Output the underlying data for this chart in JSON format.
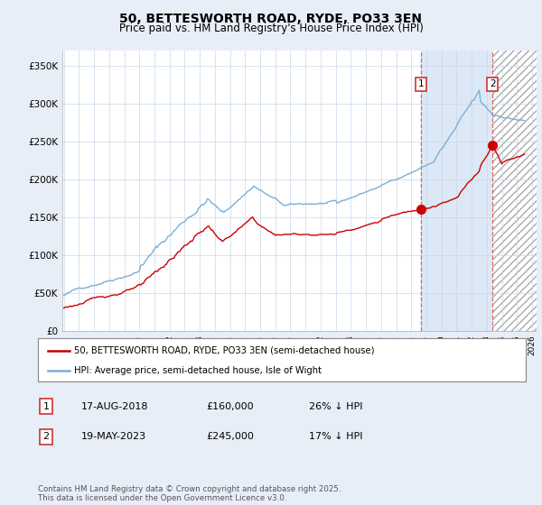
{
  "title": "50, BETTESWORTH ROAD, RYDE, PO33 3EN",
  "subtitle": "Price paid vs. HM Land Registry's House Price Index (HPI)",
  "ylabel_ticks": [
    "£0",
    "£50K",
    "£100K",
    "£150K",
    "£200K",
    "£250K",
    "£300K",
    "£350K"
  ],
  "ytick_values": [
    0,
    50000,
    100000,
    150000,
    200000,
    250000,
    300000,
    350000
  ],
  "ylim": [
    0,
    370000
  ],
  "xlim_start": 1994.9,
  "xlim_end": 2026.3,
  "hpi_color": "#7bafd4",
  "price_color": "#cc0000",
  "background_color": "#e8eef8",
  "plot_bg_color": "#ffffff",
  "legend_label1": "50, BETTESWORTH ROAD, RYDE, PO33 3EN (semi-detached house)",
  "legend_label2": "HPI: Average price, semi-detached house, Isle of Wight",
  "annotation1_label": "1",
  "annotation1_date": "17-AUG-2018",
  "annotation1_price": "£160,000",
  "annotation1_hpi": "26% ↓ HPI",
  "annotation2_label": "2",
  "annotation2_date": "19-MAY-2023",
  "annotation2_price": "£245,000",
  "annotation2_hpi": "17% ↓ HPI",
  "footer": "Contains HM Land Registry data © Crown copyright and database right 2025.\nThis data is licensed under the Open Government Licence v3.0.",
  "sale1_x": 2018.63,
  "sale1_y": 160000,
  "sale2_x": 2023.38,
  "sale2_y": 245000
}
